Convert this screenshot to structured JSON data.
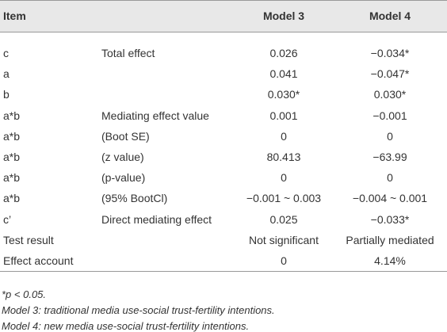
{
  "table": {
    "header": [
      "Item",
      "Model 3",
      "Model 4"
    ],
    "rows": [
      [
        "c",
        "Total effect",
        "0.026",
        "−0.034*"
      ],
      [
        "a",
        null,
        "0.041",
        "−0.047*"
      ],
      [
        "b",
        null,
        "0.030*",
        "0.030*"
      ],
      [
        "a*b",
        "Mediating effect value",
        "0.001",
        "−0.001"
      ],
      [
        "a*b",
        "(Boot SE)",
        "0",
        "0"
      ],
      [
        "a*b",
        "(z value)",
        "80.413",
        "−63.99"
      ],
      [
        "a*b",
        "(p-value)",
        "0",
        "0"
      ],
      [
        "a*b",
        "(95% BootCl)",
        "−0.001 ~ 0.003",
        "−0.004 ~ 0.001"
      ],
      [
        "c’",
        "Direct mediating effect",
        "0.025",
        "−0.033*"
      ],
      [
        "Test result",
        null,
        "Not significant",
        "Partially mediated"
      ],
      [
        "Effect account",
        null,
        "0",
        "4.14%"
      ]
    ],
    "notes": [
      "*p < 0.05.",
      "Model 3: traditional media use-social trust-fertility intentions.",
      "Model 4: new media use-social trust-fertility intentions."
    ]
  }
}
